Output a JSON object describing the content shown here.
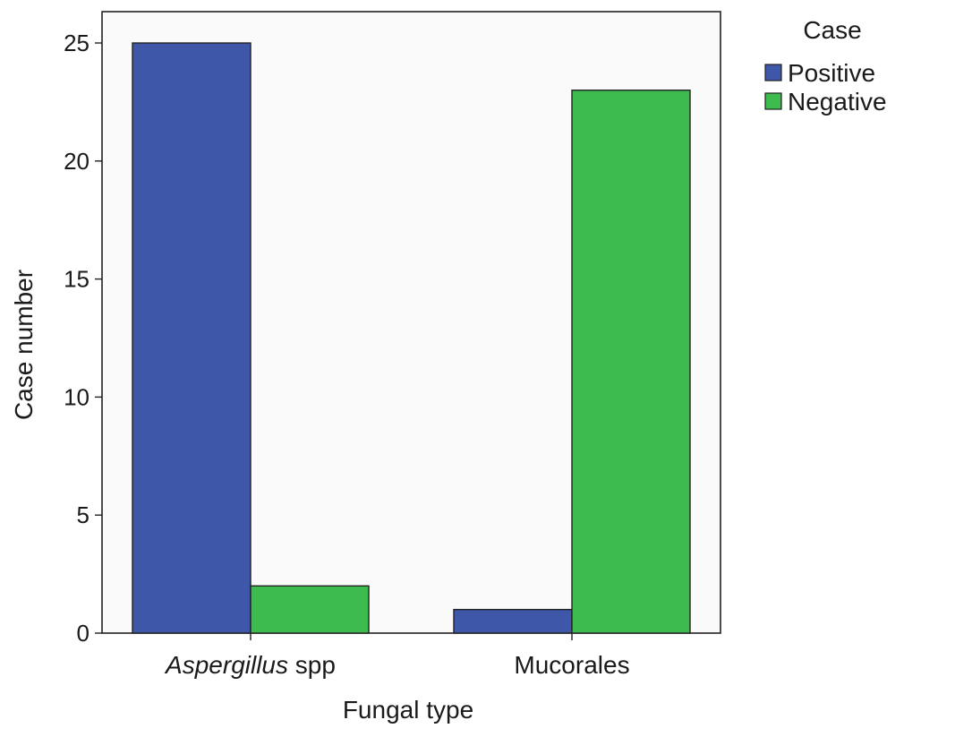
{
  "chart_data": {
    "type": "bar",
    "categories": [
      "Aspergillus spp",
      "Mucorales"
    ],
    "category_labels": [
      {
        "italic": "Aspergillus",
        "plain": " spp"
      },
      {
        "italic": "",
        "plain": "Mucorales"
      }
    ],
    "series": [
      {
        "name": "Positive",
        "values": [
          25,
          1
        ],
        "color": "#3f57a8"
      },
      {
        "name": "Negative",
        "values": [
          2,
          23
        ],
        "color": "#3dbb4f"
      }
    ],
    "xlabel": "Fungal type",
    "ylabel": "Case number",
    "ylim": [
      0,
      26.3
    ],
    "yticks": [
      0,
      5,
      10,
      15,
      20,
      25
    ],
    "legend_title": "Case",
    "legend_position": "top-right, outside plot",
    "grid": false,
    "plot_background": "#fafafa"
  }
}
